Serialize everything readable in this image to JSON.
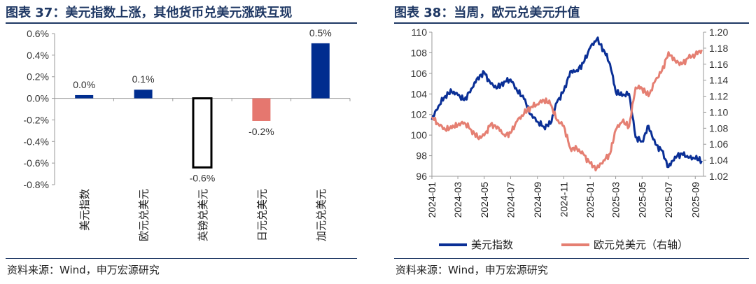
{
  "left": {
    "title": "图表 37：美元指数上涨，其他货币兑美元涨跌互现",
    "source": "资料来源：Wind，申万宏源研究",
    "chart_data": {
      "type": "bar",
      "categories": [
        "美元指数",
        "欧元兑美元",
        "英镑兑美元",
        "日元兑美元",
        "加元兑美元"
      ],
      "values": [
        0.03,
        0.08,
        -0.64,
        -0.21,
        0.51
      ],
      "data_labels": [
        "0.0%",
        "0.1%",
        "-0.6%",
        "-0.2%",
        "0.5%"
      ],
      "ylim": [
        -0.8,
        0.6
      ],
      "yticks": [
        "0.6%",
        "0.4%",
        "0.2%",
        "0.0%",
        "-0.2%",
        "-0.4%",
        "-0.6%",
        "-0.8%"
      ],
      "colors": {
        "positive": "#002d8f",
        "negative": "#e5776f",
        "highlight_border": "#000000"
      },
      "highlight_category": "英镑兑美元"
    }
  },
  "right": {
    "title": "图表 38：当周，欧元兑美元升值",
    "source": "资料来源：Wind，申万宏源研究",
    "chart_data": {
      "type": "line",
      "x_ticks": [
        "2024-01",
        "2024-03",
        "2024-05",
        "2024-07",
        "2024-09",
        "2024-11",
        "2025-01",
        "2025-03",
        "2025-05",
        "2025-07",
        "2025-09"
      ],
      "ylim_left": [
        96,
        110
      ],
      "ylim_right": [
        1.02,
        1.2
      ],
      "yticks_left": [
        "110",
        "108",
        "106",
        "104",
        "102",
        "100",
        "98",
        "96"
      ],
      "yticks_right": [
        "1.20",
        "1.18",
        "1.16",
        "1.14",
        "1.12",
        "1.10",
        "1.08",
        "1.06",
        "1.04",
        "1.02"
      ],
      "series": [
        {
          "name": "美元指数",
          "axis": "left",
          "color": "#0a2f96",
          "x": [
            "2024-01-01",
            "2024-01-16",
            "2024-02-01",
            "2024-02-16",
            "2024-03-01",
            "2024-03-16",
            "2024-04-01",
            "2024-04-16",
            "2024-05-01",
            "2024-05-16",
            "2024-06-01",
            "2024-06-16",
            "2024-07-01",
            "2024-07-16",
            "2024-08-01",
            "2024-08-16",
            "2024-09-01",
            "2024-09-16",
            "2024-10-01",
            "2024-10-16",
            "2024-11-01",
            "2024-11-16",
            "2024-12-01",
            "2024-12-16",
            "2025-01-01",
            "2025-01-16",
            "2025-02-01",
            "2025-02-16",
            "2025-03-01",
            "2025-03-16",
            "2025-04-01",
            "2025-04-16",
            "2025-05-01",
            "2025-05-16",
            "2025-06-01",
            "2025-06-16",
            "2025-07-01",
            "2025-07-16",
            "2025-08-01",
            "2025-08-16",
            "2025-09-01",
            "2025-09-16"
          ],
          "values": [
            101.5,
            102.8,
            103.8,
            104.2,
            103.9,
            103.4,
            104.5,
            105.6,
            106.1,
            105.0,
            104.6,
            105.2,
            105.4,
            104.3,
            103.5,
            102.0,
            101.3,
            100.8,
            101.1,
            103.2,
            104.3,
            106.2,
            106.3,
            107.0,
            108.5,
            109.3,
            108.3,
            106.9,
            104.2,
            103.8,
            104.0,
            99.8,
            99.4,
            100.9,
            99.1,
            98.5,
            96.9,
            97.9,
            98.2,
            97.8,
            97.7,
            97.5
          ]
        },
        {
          "name": "欧元兑美元（右轴）",
          "axis": "right",
          "color": "#e57f72",
          "x": [
            "2024-01-01",
            "2024-01-16",
            "2024-02-01",
            "2024-02-16",
            "2024-03-01",
            "2024-03-16",
            "2024-04-01",
            "2024-04-16",
            "2024-05-01",
            "2024-05-16",
            "2024-06-01",
            "2024-06-16",
            "2024-07-01",
            "2024-07-16",
            "2024-08-01",
            "2024-08-16",
            "2024-09-01",
            "2024-09-16",
            "2024-10-01",
            "2024-10-16",
            "2024-11-01",
            "2024-11-16",
            "2024-12-01",
            "2024-12-16",
            "2025-01-01",
            "2025-01-16",
            "2025-02-01",
            "2025-02-16",
            "2025-03-01",
            "2025-03-16",
            "2025-04-01",
            "2025-04-16",
            "2025-05-01",
            "2025-05-16",
            "2025-06-01",
            "2025-06-16",
            "2025-07-01",
            "2025-07-16",
            "2025-08-01",
            "2025-08-16",
            "2025-09-01",
            "2025-09-16"
          ],
          "values": [
            1.094,
            1.085,
            1.078,
            1.08,
            1.084,
            1.087,
            1.078,
            1.068,
            1.071,
            1.085,
            1.082,
            1.072,
            1.074,
            1.089,
            1.098,
            1.106,
            1.11,
            1.115,
            1.11,
            1.09,
            1.083,
            1.055,
            1.055,
            1.048,
            1.036,
            1.03,
            1.04,
            1.048,
            1.078,
            1.088,
            1.082,
            1.131,
            1.13,
            1.12,
            1.14,
            1.152,
            1.175,
            1.165,
            1.16,
            1.168,
            1.172,
            1.178
          ]
        }
      ]
    }
  }
}
